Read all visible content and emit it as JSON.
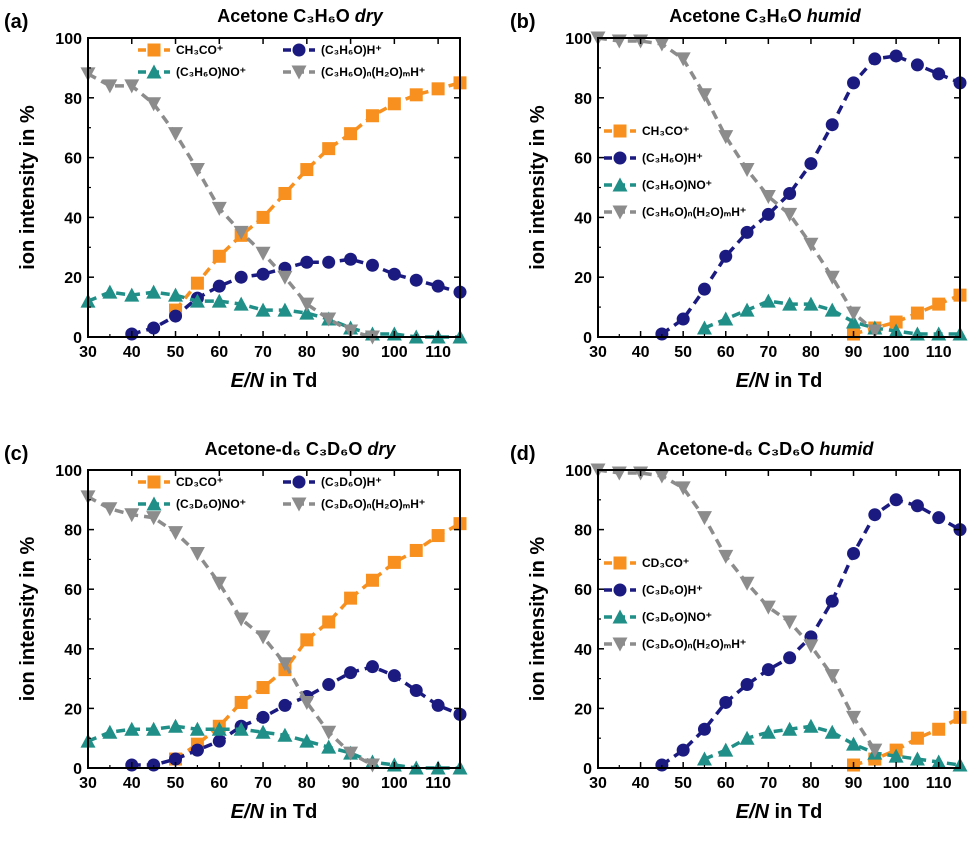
{
  "figure": {
    "panels": [
      {
        "letter": "(a)",
        "title_main": "Acetone C₃H₆O ",
        "title_italic": "dry"
      },
      {
        "letter": "(b)",
        "title_main": "Acetone C₃H₆O ",
        "title_italic": "humid"
      },
      {
        "letter": "(c)",
        "title_main": "Acetone-d₆ C₃D₆O ",
        "title_italic": "dry"
      },
      {
        "letter": "(d)",
        "title_main": "Acetone-d₆ C₃D₆O ",
        "title_italic": "humid"
      }
    ],
    "xlabel_italic": "E/N",
    "xlabel_rest": " in Td",
    "ylabel": "ion intensity in %"
  },
  "colors": {
    "orange": "#f7901e",
    "navy": "#1a1a80",
    "teal": "#1f8f87",
    "grey": "#8c8c8c"
  },
  "chart_data": [
    {
      "type": "line",
      "title": "Acetone C₃H₆O dry",
      "xlabel": "E/N in Td",
      "ylabel": "ion intensity in %",
      "xlim": [
        30,
        115
      ],
      "ylim": [
        0,
        100
      ],
      "xticks": [
        30,
        40,
        50,
        60,
        70,
        80,
        90,
        100,
        110
      ],
      "yticks": [
        0,
        20,
        40,
        60,
        80,
        100
      ],
      "legend": "top, two columns",
      "series": [
        {
          "name": "CH₃CO⁺",
          "marker": "square",
          "color": "orange",
          "x": [
            50,
            55,
            60,
            65,
            70,
            75,
            80,
            85,
            90,
            95,
            100,
            105,
            110,
            115
          ],
          "y": [
            9,
            18,
            27,
            34,
            40,
            48,
            56,
            63,
            68,
            74,
            78,
            81,
            83,
            85
          ]
        },
        {
          "name": "(C₃H₆O)H⁺",
          "marker": "circle",
          "color": "navy",
          "x": [
            40,
            45,
            50,
            55,
            60,
            65,
            70,
            75,
            80,
            85,
            90,
            95,
            100,
            105,
            110,
            115
          ],
          "y": [
            1,
            3,
            7,
            13,
            17,
            20,
            21,
            23,
            25,
            25,
            26,
            24,
            21,
            19,
            17,
            15
          ]
        },
        {
          "name": "(C₃H₆O)NO⁺",
          "marker": "triangle-up",
          "color": "teal",
          "x": [
            30,
            35,
            40,
            45,
            50,
            55,
            60,
            65,
            70,
            75,
            80,
            85,
            90,
            95,
            100,
            105,
            110,
            115
          ],
          "y": [
            12,
            15,
            14,
            15,
            14,
            12,
            12,
            11,
            9,
            9,
            8,
            6,
            3,
            1,
            1,
            0,
            0,
            0
          ]
        },
        {
          "name": "(C₃H₆O)ₙ(H₂O)ₘH⁺",
          "marker": "triangle-down",
          "color": "grey",
          "x": [
            30,
            35,
            40,
            45,
            50,
            55,
            60,
            65,
            70,
            75,
            80,
            85,
            90,
            95
          ],
          "y": [
            88,
            84,
            84,
            78,
            68,
            56,
            43,
            35,
            28,
            20,
            11,
            6,
            2,
            0
          ]
        }
      ]
    },
    {
      "type": "line",
      "title": "Acetone C₃H₆O humid",
      "xlabel": "E/N in Td",
      "ylabel": "ion intensity in %",
      "xlim": [
        30,
        115
      ],
      "ylim": [
        0,
        100
      ],
      "xticks": [
        30,
        40,
        50,
        60,
        70,
        80,
        90,
        100,
        110
      ],
      "yticks": [
        0,
        20,
        40,
        60,
        80,
        100
      ],
      "legend": "left, one column",
      "series": [
        {
          "name": "CH₃CO⁺",
          "marker": "square",
          "color": "orange",
          "x": [
            90,
            95,
            100,
            105,
            110,
            115
          ],
          "y": [
            1,
            3,
            5,
            8,
            11,
            14
          ]
        },
        {
          "name": "(C₃H₆O)H⁺",
          "marker": "circle",
          "color": "navy",
          "x": [
            45,
            50,
            55,
            60,
            65,
            70,
            75,
            80,
            85,
            90,
            95,
            100,
            105,
            110,
            115
          ],
          "y": [
            1,
            6,
            16,
            27,
            35,
            41,
            48,
            58,
            71,
            85,
            93,
            94,
            91,
            88,
            85
          ]
        },
        {
          "name": "(C₃H₆O)NO⁺",
          "marker": "triangle-up",
          "color": "teal",
          "x": [
            55,
            60,
            65,
            70,
            75,
            80,
            85,
            90,
            95,
            100,
            105,
            110,
            115
          ],
          "y": [
            3,
            6,
            9,
            12,
            11,
            11,
            9,
            5,
            3,
            2,
            1,
            1,
            1
          ]
        },
        {
          "name": "(C₃H₆O)ₙ(H₂O)ₘH⁺",
          "marker": "triangle-down",
          "color": "grey",
          "x": [
            30,
            35,
            40,
            45,
            50,
            55,
            60,
            65,
            70,
            75,
            80,
            85,
            90,
            95
          ],
          "y": [
            100,
            99,
            99,
            98,
            93,
            81,
            67,
            56,
            47,
            41,
            31,
            20,
            8,
            2
          ]
        }
      ]
    },
    {
      "type": "line",
      "title": "Acetone-d₆ C₃D₆O dry",
      "xlabel": "E/N in Td",
      "ylabel": "ion intensity in %",
      "xlim": [
        30,
        115
      ],
      "ylim": [
        0,
        100
      ],
      "xticks": [
        30,
        40,
        50,
        60,
        70,
        80,
        90,
        100,
        110
      ],
      "yticks": [
        0,
        20,
        40,
        60,
        80,
        100
      ],
      "legend": "top, two columns",
      "series": [
        {
          "name": "CD₃CO⁺",
          "marker": "square",
          "color": "orange",
          "x": [
            50,
            55,
            60,
            65,
            70,
            75,
            80,
            85,
            90,
            95,
            100,
            105,
            110,
            115
          ],
          "y": [
            3,
            8,
            14,
            22,
            27,
            33,
            43,
            49,
            57,
            63,
            69,
            73,
            78,
            82
          ]
        },
        {
          "name": "(C₃D₆O)H⁺",
          "marker": "circle",
          "color": "navy",
          "x": [
            40,
            45,
            50,
            55,
            60,
            65,
            70,
            75,
            80,
            85,
            90,
            95,
            100,
            105,
            110,
            115
          ],
          "y": [
            1,
            1,
            3,
            6,
            9,
            14,
            17,
            21,
            24,
            28,
            32,
            34,
            31,
            26,
            21,
            18
          ]
        },
        {
          "name": "(C₃D₆O)NO⁺",
          "marker": "triangle-up",
          "color": "teal",
          "x": [
            30,
            35,
            40,
            45,
            50,
            55,
            60,
            65,
            70,
            75,
            80,
            85,
            90,
            95,
            100,
            105,
            110,
            115
          ],
          "y": [
            9,
            12,
            13,
            13,
            14,
            13,
            13,
            13,
            12,
            11,
            9,
            7,
            5,
            2,
            1,
            0,
            0,
            0
          ]
        },
        {
          "name": "(C₃D₆O)ₙ(H₂O)ₘH⁺",
          "marker": "triangle-down",
          "color": "grey",
          "x": [
            30,
            35,
            40,
            45,
            50,
            55,
            60,
            65,
            70,
            75,
            80,
            85,
            90,
            95
          ],
          "y": [
            91,
            87,
            85,
            84,
            79,
            72,
            62,
            50,
            44,
            35,
            22,
            12,
            5,
            1
          ]
        }
      ]
    },
    {
      "type": "line",
      "title": "Acetone-d₆ C₃D₆O humid",
      "xlabel": "E/N in Td",
      "ylabel": "ion intensity in %",
      "xlim": [
        30,
        115
      ],
      "ylim": [
        0,
        100
      ],
      "xticks": [
        30,
        40,
        50,
        60,
        70,
        80,
        90,
        100,
        110
      ],
      "yticks": [
        0,
        20,
        40,
        60,
        80,
        100
      ],
      "legend": "left, one column",
      "series": [
        {
          "name": "CD₃CO⁺",
          "marker": "square",
          "color": "orange",
          "x": [
            90,
            95,
            100,
            105,
            110,
            115
          ],
          "y": [
            1,
            3,
            6,
            10,
            13,
            17
          ]
        },
        {
          "name": "(C₃D₆O)H⁺",
          "marker": "circle",
          "color": "navy",
          "x": [
            45,
            50,
            55,
            60,
            65,
            70,
            75,
            80,
            85,
            90,
            95,
            100,
            105,
            110,
            115
          ],
          "y": [
            1,
            6,
            13,
            22,
            28,
            33,
            37,
            44,
            56,
            72,
            85,
            90,
            88,
            84,
            80
          ]
        },
        {
          "name": "(C₃D₆O)NO⁺",
          "marker": "triangle-up",
          "color": "teal",
          "x": [
            55,
            60,
            65,
            70,
            75,
            80,
            85,
            90,
            95,
            100,
            105,
            110,
            115
          ],
          "y": [
            3,
            6,
            10,
            12,
            13,
            14,
            12,
            8,
            5,
            4,
            3,
            2,
            1
          ]
        },
        {
          "name": "(C₃D₆O)ₙ(H₂O)ₘH⁺",
          "marker": "triangle-down",
          "color": "grey",
          "x": [
            30,
            35,
            40,
            45,
            50,
            55,
            60,
            65,
            70,
            75,
            80,
            85,
            90,
            95
          ],
          "y": [
            100,
            99,
            99,
            98,
            94,
            84,
            71,
            62,
            54,
            49,
            41,
            31,
            17,
            6
          ]
        }
      ]
    }
  ]
}
